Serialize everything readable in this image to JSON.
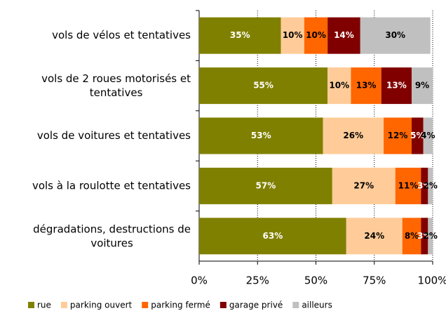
{
  "chart_data": {
    "type": "stacked-bar-horizontal",
    "categories": [
      "vols de vélos et tentatives",
      "vols de 2 roues motorisés et tentatives",
      "vols de voitures et tentatives",
      "vols à la roulotte et tentatives",
      "dégradations, destructions de voitures"
    ],
    "series": [
      {
        "name": "rue",
        "color": "#808000",
        "values": [
          35,
          55,
          53,
          57,
          63
        ],
        "value_labels": [
          "35%",
          "55%",
          "53%",
          "57%",
          "63%"
        ]
      },
      {
        "name": "parking ouvert",
        "color": "#FFCC99",
        "values": [
          10,
          10,
          26,
          27,
          24
        ],
        "value_labels": [
          "10%",
          "10%",
          "26%",
          "27%",
          "24%"
        ]
      },
      {
        "name": "parking fermé",
        "color": "#FF6600",
        "values": [
          10,
          13,
          12,
          11,
          8
        ],
        "value_labels": [
          "10%",
          "13%",
          "12%",
          "11%",
          "8%"
        ]
      },
      {
        "name": "garage privé",
        "color": "#800000",
        "values": [
          14,
          13,
          5,
          3,
          3
        ],
        "value_labels": [
          "14%",
          "13%",
          "5%",
          "3%",
          "3%"
        ]
      },
      {
        "name": "ailleurs",
        "color": "#C0C0C0",
        "values": [
          30,
          9,
          4,
          2,
          2
        ],
        "value_labels": [
          "30%",
          "9%",
          "4%",
          "2%",
          "2%"
        ]
      }
    ],
    "xlim": [
      0,
      100
    ],
    "xticks": [
      {
        "value": 0,
        "label": "0%"
      },
      {
        "value": 25,
        "label": "25%"
      },
      {
        "value": 50,
        "label": "50%"
      },
      {
        "value": 75,
        "label": "75%"
      },
      {
        "value": 100,
        "label": "100%"
      }
    ],
    "grid": true,
    "legend": "bottom"
  }
}
